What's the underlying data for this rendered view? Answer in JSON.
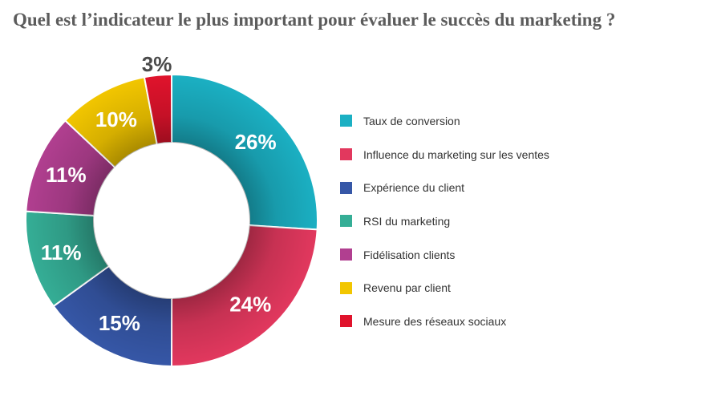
{
  "chart_data": {
    "type": "pie",
    "donut": true,
    "title": "Quel est l’indicateur le plus important pour évaluer le succès du marketing ?",
    "categories": [
      "Taux de conversion",
      "Influence du marketing sur les ventes",
      "Expérience du client",
      "RSI du marketing",
      "Fidélisation clients",
      "Revenu par client",
      "Mesure des réseaux sociaux"
    ],
    "values": [
      26,
      24,
      15,
      11,
      11,
      10,
      3
    ],
    "data_labels": [
      "26%",
      "24%",
      "15%",
      "11%",
      "11%",
      "10%",
      "3%"
    ],
    "colors": [
      "#1bb0c3",
      "#e2385e",
      "#3657a7",
      "#35ae96",
      "#b13f90",
      "#f2c600",
      "#e0132c"
    ],
    "legend_position": "right"
  }
}
